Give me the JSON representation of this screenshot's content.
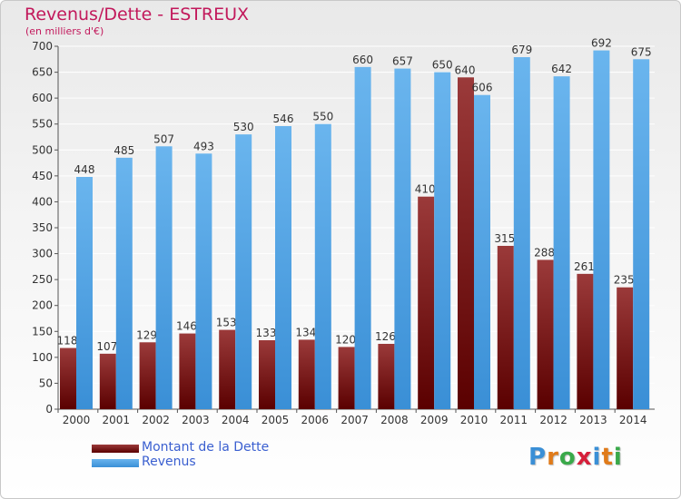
{
  "colors": {
    "debt_dark": "#5a0000",
    "debt_light": "#9b3a3a",
    "revenue_dark": "#3a8fd6",
    "revenue_light": "#6ab5ee",
    "title": "#c2185b",
    "legend_text": "#3a5fd0",
    "grid": "#ffffff"
  },
  "legend": [
    {
      "label": "Montant de la Dette"
    },
    {
      "label": "Revenus"
    }
  ],
  "logo": {
    "text": "Proxiti",
    "letter_colors": [
      "#3a8fd6",
      "#e07b1a",
      "#3aa94a",
      "#d61f3a",
      "#3a8fd6",
      "#e07b1a",
      "#3aa94a"
    ]
  },
  "chart_data": {
    "type": "bar",
    "title": "Revenus/Dette - ESTREUX",
    "subtitle": "(en milliers d'€)",
    "xlabel": "",
    "ylabel": "",
    "ylim": [
      0,
      700
    ],
    "ytick_step": 50,
    "grid": true,
    "legend_position": "bottom-left",
    "categories": [
      "2000",
      "2001",
      "2002",
      "2003",
      "2004",
      "2005",
      "2006",
      "2007",
      "2008",
      "2009",
      "2010",
      "2011",
      "2012",
      "2013",
      "2014"
    ],
    "series": [
      {
        "name": "Montant de la Dette",
        "values": [
          118,
          107,
          129,
          146,
          153,
          133,
          134,
          120,
          126,
          410,
          640,
          315,
          288,
          261,
          235
        ]
      },
      {
        "name": "Revenus",
        "values": [
          448,
          485,
          507,
          493,
          530,
          546,
          550,
          660,
          657,
          650,
          606,
          679,
          642,
          692,
          675
        ]
      }
    ]
  }
}
